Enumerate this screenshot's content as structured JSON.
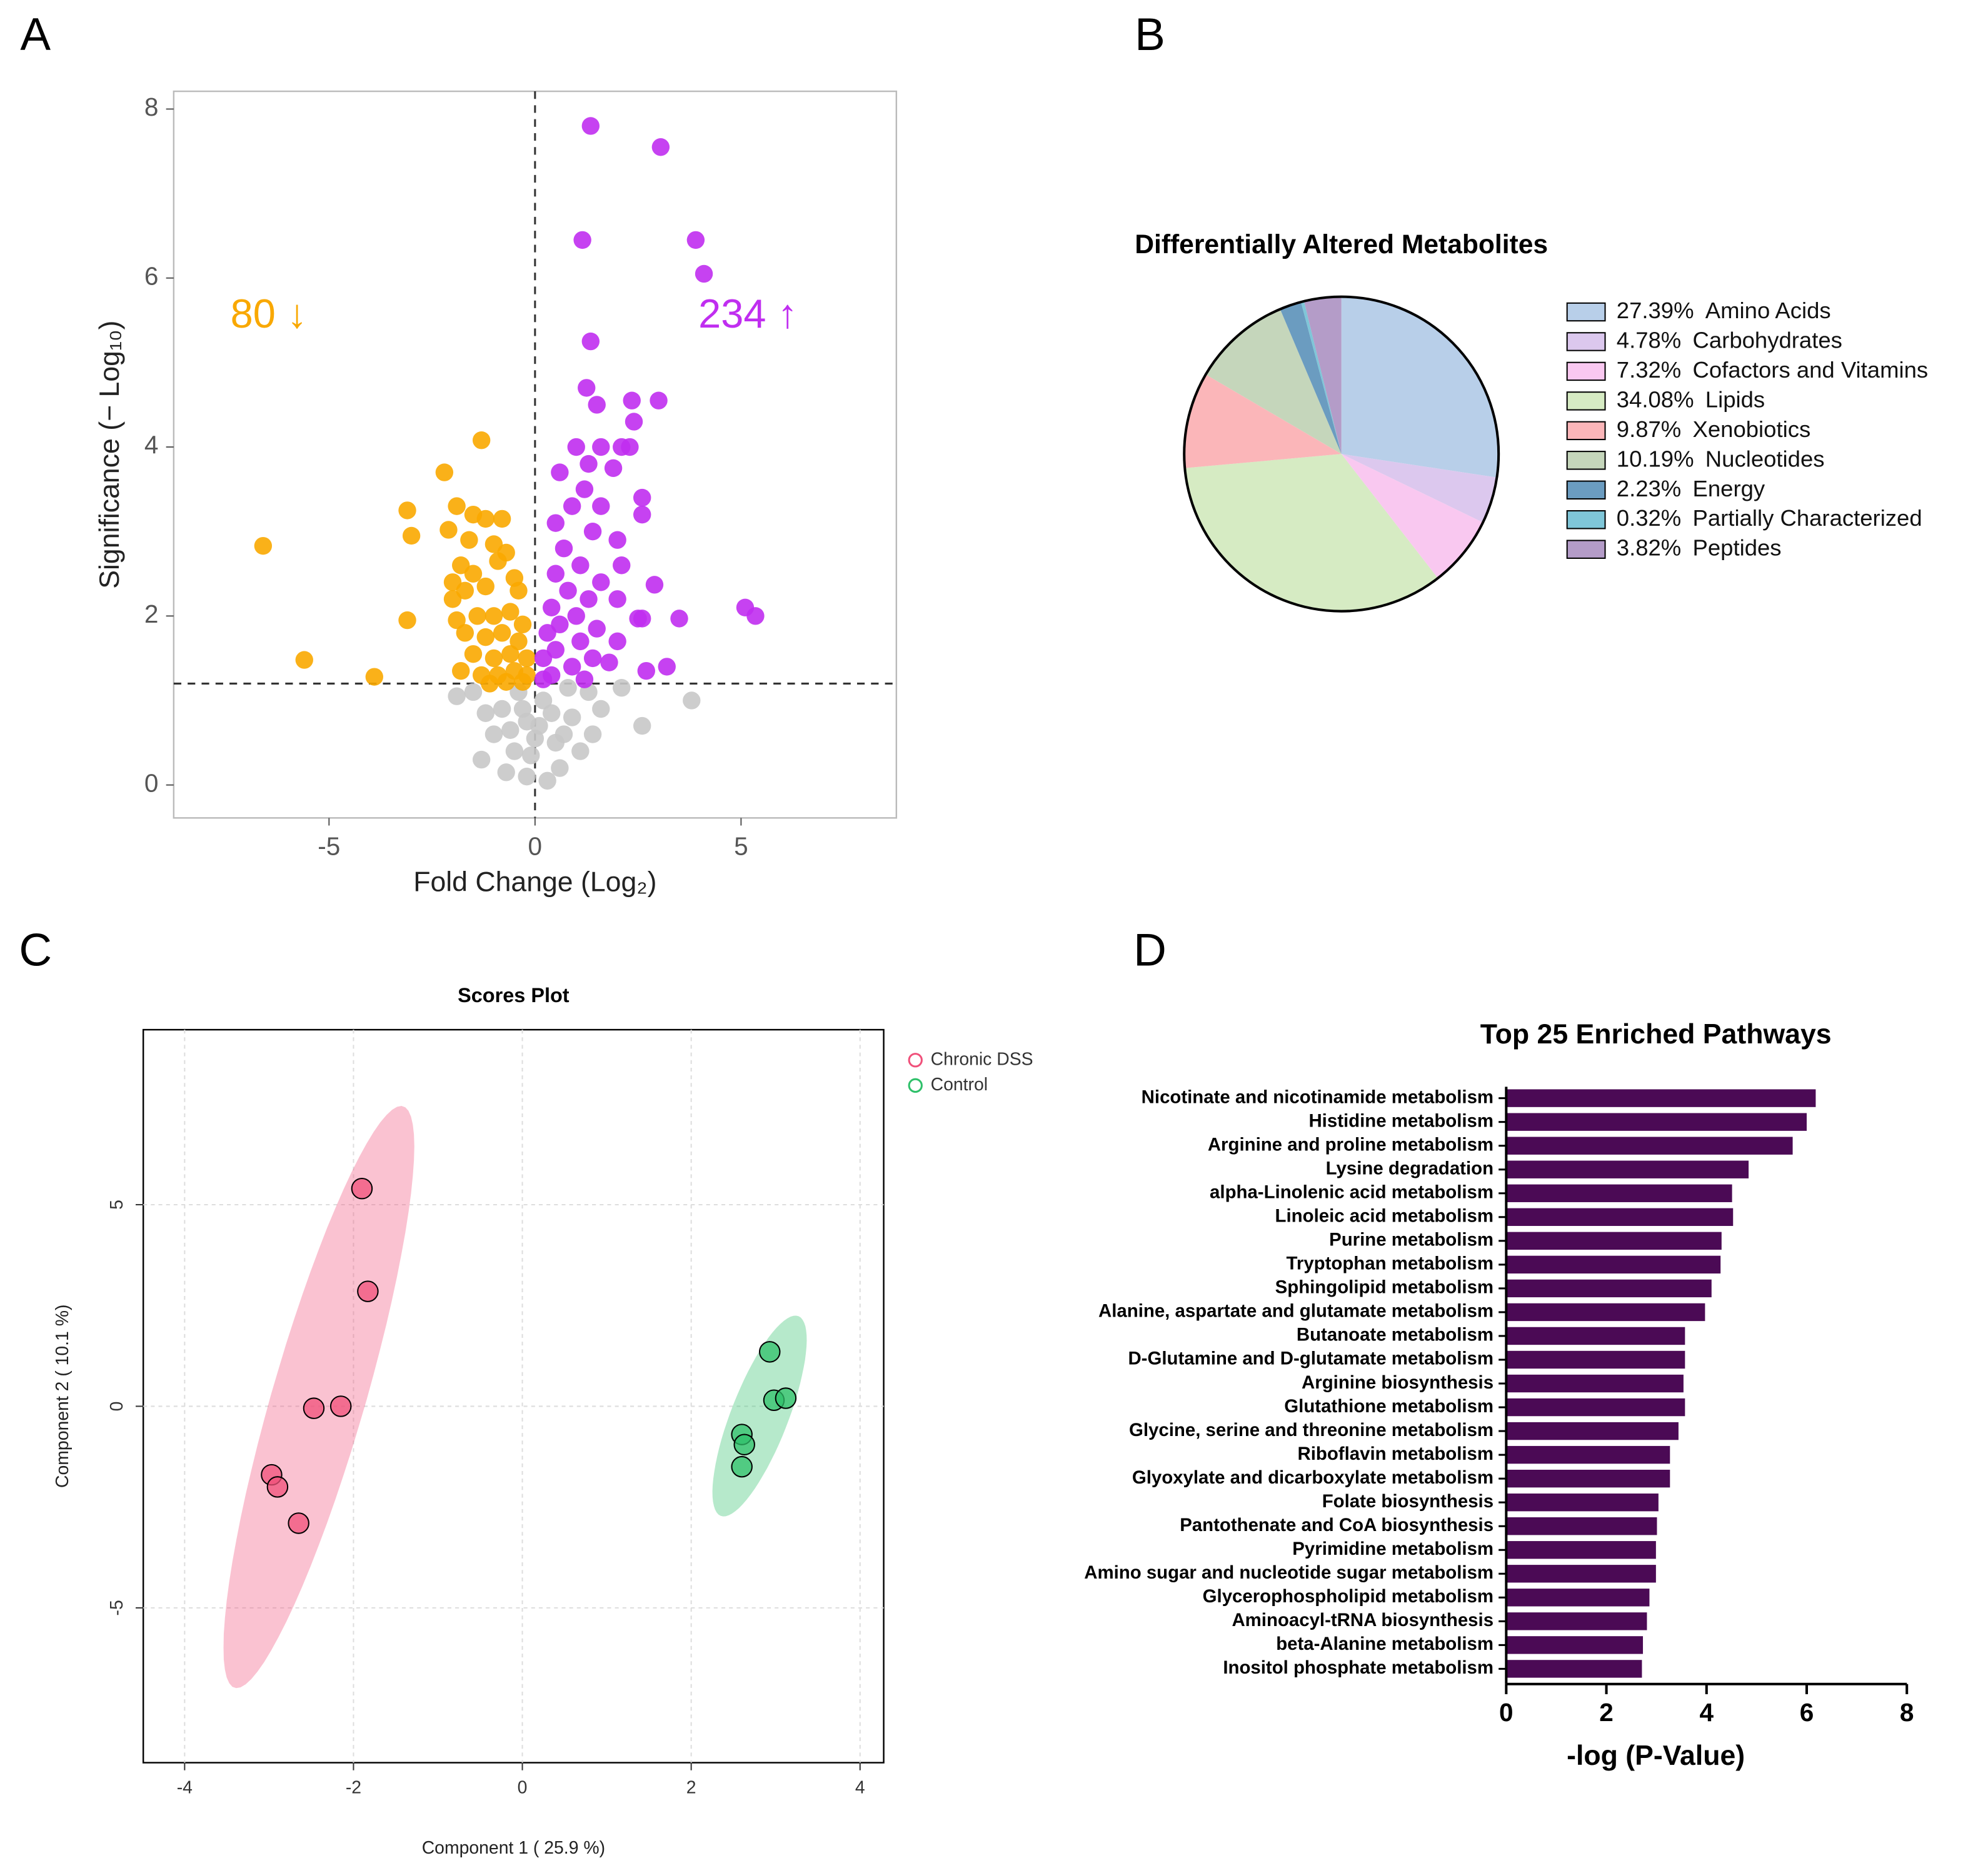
{
  "chart_data": [
    {
      "panel": "A",
      "type": "scatter",
      "xlabel": "Fold Change (Log₂)",
      "ylabel": "Significance (− Log₁₀)",
      "xlim": [
        -8.77,
        8.77
      ],
      "ylim": [
        -0.39,
        8.21
      ],
      "xticks": [
        -5,
        0,
        5
      ],
      "yticks": [
        0,
        2,
        4,
        6,
        8
      ],
      "vline": 0,
      "hline": 1.2,
      "annotations": [
        {
          "text": "80 ↓",
          "color": "#f9a800"
        },
        {
          "text": "234 ↑",
          "color": "#c02ef0"
        }
      ],
      "series": [
        {
          "color": "#c8c8c8",
          "x": [
            3.8,
            2.6,
            -1.3,
            -0.2,
            0.3,
            -0.5,
            0.5,
            -0.8,
            0.9,
            1.3,
            -1.5,
            0.1,
            -0.3,
            0.6,
            -0.7,
            1.1,
            -0.1,
            0.2,
            -1.0,
            1.6,
            -0.4,
            0.8,
            2.1,
            -1.9,
            0.0,
            -0.2,
            0.4,
            -0.6,
            0.7,
            1.4,
            -1.2
          ],
          "values": [
            1.0,
            0.7,
            0.3,
            0.1,
            0.05,
            0.4,
            0.5,
            0.9,
            0.8,
            1.1,
            1.1,
            0.7,
            0.9,
            0.2,
            0.15,
            0.4,
            0.35,
            1.0,
            0.6,
            0.9,
            1.1,
            1.15,
            1.15,
            1.05,
            0.55,
            0.75,
            0.85,
            0.65,
            0.6,
            0.6,
            0.85
          ]
        },
        {
          "color": "#f9a800",
          "x": [
            -6.6,
            -5.6,
            -3.9,
            -3.1,
            -3.1,
            -3.0,
            -2.2,
            -2.0,
            -1.3,
            -2.1,
            -1.9,
            -1.5,
            -1.2,
            -0.8,
            -1.6,
            -1.0,
            -0.7,
            -1.8,
            -1.5,
            -0.9,
            -0.5,
            -2.0,
            -1.7,
            -1.2,
            -0.4,
            -1.9,
            -1.4,
            -1.0,
            -0.6,
            -0.3,
            -1.7,
            -1.2,
            -0.8,
            -0.4,
            -1.5,
            -1.0,
            -0.6,
            -0.2,
            -1.8,
            -1.3,
            -0.9,
            -0.5,
            -0.2,
            -1.1,
            -0.7,
            -0.3
          ],
          "values": [
            2.83,
            1.48,
            1.28,
            1.95,
            3.25,
            2.95,
            3.7,
            2.4,
            4.08,
            3.02,
            3.3,
            3.2,
            3.15,
            3.15,
            2.9,
            2.85,
            2.75,
            2.6,
            2.5,
            2.65,
            2.45,
            2.2,
            2.3,
            2.35,
            2.3,
            1.95,
            2.0,
            2.0,
            2.05,
            1.9,
            1.8,
            1.75,
            1.8,
            1.7,
            1.55,
            1.5,
            1.55,
            1.5,
            1.35,
            1.3,
            1.3,
            1.35,
            1.3,
            1.2,
            1.22,
            1.22
          ]
        },
        {
          "color": "#c02ef0",
          "x": [
            1.35,
            3.05,
            1.15,
            3.9,
            4.1,
            1.35,
            1.25,
            1.5,
            2.35,
            3.0,
            2.4,
            1.0,
            1.6,
            2.1,
            2.3,
            1.3,
            1.9,
            0.6,
            1.2,
            2.6,
            1.6,
            0.9,
            2.6,
            0.5,
            1.4,
            2.0,
            0.7,
            1.1,
            2.1,
            0.5,
            1.6,
            2.9,
            0.8,
            1.3,
            2.0,
            0.4,
            1.0,
            2.5,
            2.6,
            3.5,
            5.1,
            5.35,
            0.6,
            1.5,
            0.3,
            1.1,
            2.0,
            0.5,
            1.4,
            0.2,
            0.9,
            1.8,
            2.7,
            3.2,
            0.4,
            1.2,
            0.2
          ],
          "values": [
            7.8,
            7.55,
            6.45,
            6.45,
            6.05,
            5.25,
            4.7,
            4.5,
            4.55,
            4.55,
            4.3,
            4.0,
            4.0,
            4.0,
            4.0,
            3.8,
            3.75,
            3.7,
            3.5,
            3.4,
            3.3,
            3.3,
            3.2,
            3.1,
            3.0,
            2.9,
            2.8,
            2.6,
            2.6,
            2.5,
            2.4,
            2.37,
            2.3,
            2.2,
            2.2,
            2.1,
            2.0,
            1.97,
            1.97,
            1.97,
            2.1,
            2.0,
            1.9,
            1.85,
            1.8,
            1.7,
            1.7,
            1.6,
            1.5,
            1.5,
            1.4,
            1.45,
            1.35,
            1.4,
            1.3,
            1.25,
            1.25
          ]
        }
      ]
    },
    {
      "panel": "B",
      "type": "pie",
      "title": "Differentially Altered Metabolites",
      "categories": [
        "Amino Acids",
        "Carbohydrates",
        "Cofactors and Vitamins",
        "Lipids",
        "Xenobiotics",
        "Nucleotides",
        "Energy",
        "Partially Characterized",
        "Peptides"
      ],
      "values": [
        27.39,
        4.78,
        7.32,
        34.08,
        9.87,
        10.19,
        2.23,
        0.32,
        3.82
      ],
      "value_labels": [
        "27.39%",
        "4.78%",
        "7.32%",
        "34.08%",
        "9.87%",
        "10.19%",
        "2.23%",
        "0.32%",
        "3.82%"
      ],
      "colors": [
        "#b8cfe9",
        "#dcc8ee",
        "#f9c8f0",
        "#d6ebc3",
        "#fbb6b9",
        "#c5d6bb",
        "#6b9cc0",
        "#7fc6d8",
        "#b49cc8"
      ]
    },
    {
      "panel": "C",
      "type": "scatter",
      "title": "Scores Plot",
      "xlabel": "Component 1 ( 25.9 %)",
      "ylabel": "Component 2 ( 10.1 %)",
      "xlim": [
        -4.49,
        4.28
      ],
      "ylim": [
        -8.84,
        9.34
      ],
      "xticks": [
        -4,
        -2,
        0,
        2,
        4
      ],
      "yticks": [
        -5,
        0,
        5
      ],
      "grid": true,
      "ellipses": true,
      "legend": "outside-top-right",
      "series": [
        {
          "name": "Chronic DSS",
          "color": "#f0507a",
          "x": [
            -1.9,
            -1.83,
            -2.47,
            -2.15,
            -2.97,
            -2.9,
            -2.65
          ],
          "values": [
            5.4,
            2.85,
            -0.05,
            0.0,
            -1.7,
            -2.0,
            -2.9
          ]
        },
        {
          "name": "Control",
          "color": "#2fc06a",
          "x": [
            2.93,
            2.98,
            3.12,
            2.6,
            2.63,
            2.6
          ],
          "values": [
            1.35,
            0.15,
            0.2,
            -0.7,
            -0.95,
            -1.5
          ]
        }
      ]
    },
    {
      "panel": "D",
      "type": "barh",
      "title": "Top 25 Enriched Pathways",
      "xlabel": "-log (P-Value)",
      "xlim": [
        0,
        8
      ],
      "xticks": [
        0,
        2,
        4,
        6,
        8
      ],
      "color": "#4b0a55",
      "categories": [
        "Nicotinate and nicotinamide metabolism",
        "Histidine metabolism",
        "Arginine and proline metabolism",
        "Lysine degradation",
        "alpha-Linolenic acid metabolism",
        "Linoleic acid metabolism",
        "Purine metabolism",
        "Tryptophan metabolism",
        "Sphingolipid metabolism",
        "Alanine, aspartate and glutamate metabolism",
        "Butanoate metabolism",
        "D-Glutamine and D-glutamate metabolism",
        "Arginine biosynthesis",
        "Glutathione metabolism",
        "Glycine, serine and threonine metabolism",
        "Riboflavin metabolism",
        "Glyoxylate and dicarboxylate metabolism",
        "Folate biosynthesis",
        "Pantothenate and CoA biosynthesis",
        "Pyrimidine metabolism",
        "Amino sugar and nucleotide sugar metabolism",
        "Glycerophospholipid metabolism",
        "Aminoacyl-tRNA biosynthesis",
        "beta-Alanine metabolism",
        "Inositol phosphate metabolism"
      ],
      "values": [
        6.18,
        6.0,
        5.72,
        4.84,
        4.51,
        4.53,
        4.3,
        4.28,
        4.1,
        3.97,
        3.57,
        3.57,
        3.54,
        3.57,
        3.44,
        3.27,
        3.27,
        3.04,
        3.01,
        2.99,
        2.99,
        2.86,
        2.81,
        2.73,
        2.71
      ]
    }
  ]
}
